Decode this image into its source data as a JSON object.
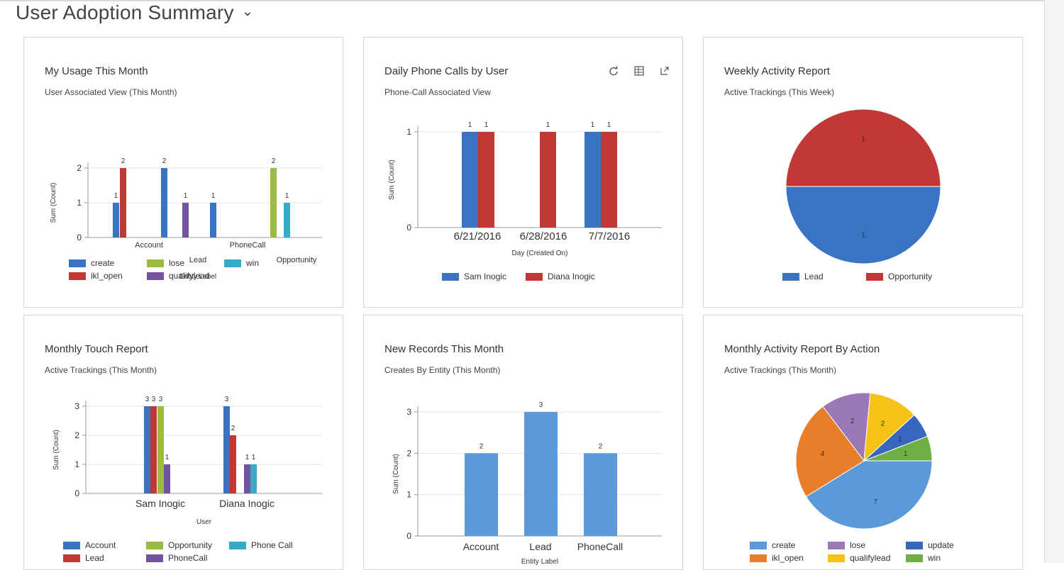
{
  "page": {
    "title": "User Adoption Summary"
  },
  "colors": {
    "blue": "#3a73c2",
    "red": "#c23836",
    "green": "#9bbb43",
    "teal": "#36abc7",
    "purple": "#7452a2",
    "lightblue": "#5b99d8",
    "orange": "#e87e2a",
    "lavender": "#9a79b6",
    "yellow": "#f6c218",
    "darkblue": "#3666bd",
    "midgreen": "#6fae43"
  },
  "cards": [
    {
      "title": "My Usage This Month",
      "subtitle": "User Associated View (This Month)",
      "legend": [
        {
          "label": "create",
          "color": "#3a73c2"
        },
        {
          "label": "lose",
          "color": "#9bbb43"
        },
        {
          "label": "win",
          "color": "#36abc7"
        },
        {
          "label": "ikl_open",
          "color": "#c23836"
        },
        {
          "label": "qualifylead",
          "color": "#7452a2"
        }
      ]
    },
    {
      "title": "Daily Phone Calls by User",
      "subtitle": "Phone-Call Associated View",
      "legend": [
        {
          "label": "Sam Inogic",
          "color": "#3a73c2"
        },
        {
          "label": "Diana Inogic",
          "color": "#c23836"
        }
      ]
    },
    {
      "title": "Weekly Activity Report",
      "subtitle": "Active Trackings (This Week)",
      "legend": [
        {
          "label": "Lead",
          "color": "#3a73c2"
        },
        {
          "label": "Opportunity",
          "color": "#c23836"
        }
      ]
    },
    {
      "title": "Monthly Touch Report",
      "subtitle": "Active Trackings (This Month)",
      "legend": [
        {
          "label": "Account",
          "color": "#3a73c2"
        },
        {
          "label": "Opportunity",
          "color": "#9bbb43"
        },
        {
          "label": "Phone Call",
          "color": "#36abc7"
        },
        {
          "label": "Lead",
          "color": "#c23836"
        },
        {
          "label": "PhoneCall",
          "color": "#7452a2"
        }
      ]
    },
    {
      "title": "New Records This Month",
      "subtitle": "Creates By Entity (This Month)",
      "legend": []
    },
    {
      "title": "Monthly Activity Report By Action",
      "subtitle": "Active Trackings (This Month)",
      "legend": [
        {
          "label": "create",
          "color": "#5b99d8"
        },
        {
          "label": "lose",
          "color": "#9a79b6"
        },
        {
          "label": "update",
          "color": "#3666bd"
        },
        {
          "label": "ikl_open",
          "color": "#e87e2a"
        },
        {
          "label": "qualifylead",
          "color": "#f6c218"
        },
        {
          "label": "win",
          "color": "#6fae43"
        }
      ]
    }
  ],
  "chart_data": [
    {
      "type": "bar",
      "title": "My Usage This Month",
      "xlabel": "Entity Label",
      "ylabel": "Sum (Count)",
      "ylim": [
        0,
        2
      ],
      "yticks": [
        "0",
        "1",
        "2"
      ],
      "categories": [
        "Account",
        "Lead",
        "PhoneCall",
        "Opportunity"
      ],
      "series": [
        {
          "name": "create",
          "color": "#3a73c2",
          "values": [
            1,
            2,
            1,
            null
          ]
        },
        {
          "name": "ikl_open",
          "color": "#c23836",
          "values": [
            2,
            null,
            null,
            null
          ]
        },
        {
          "name": "qualifylead",
          "color": "#7452a2",
          "values": [
            null,
            1,
            null,
            null
          ]
        },
        {
          "name": "lose",
          "color": "#9bbb43",
          "values": [
            null,
            null,
            null,
            2
          ]
        },
        {
          "name": "win",
          "color": "#36abc7",
          "values": [
            null,
            null,
            null,
            1
          ]
        }
      ],
      "grid": true
    },
    {
      "type": "bar",
      "title": "Daily Phone Calls by User",
      "xlabel": "Day (Created On)",
      "ylabel": "Sum (Count)",
      "ylim": [
        0,
        1
      ],
      "yticks": [
        "0",
        "1"
      ],
      "categories": [
        "6/21/2016",
        "6/28/2016",
        "7/7/2016"
      ],
      "series": [
        {
          "name": "Sam Inogic",
          "color": "#3a73c2",
          "values": [
            1,
            null,
            1
          ]
        },
        {
          "name": "Diana Inogic",
          "color": "#c23836",
          "values": [
            1,
            1,
            1
          ]
        }
      ],
      "grid": true
    },
    {
      "type": "pie",
      "title": "Weekly Activity Report",
      "slices": [
        {
          "label": "Lead",
          "value": 1,
          "color": "#3a73c2"
        },
        {
          "label": "Opportunity",
          "value": 1,
          "color": "#c23836"
        }
      ]
    },
    {
      "type": "bar",
      "title": "Monthly Touch Report",
      "xlabel": "User",
      "ylabel": "Sum (Count)",
      "ylim": [
        0,
        3
      ],
      "yticks": [
        "0",
        "1",
        "2",
        "3"
      ],
      "categories": [
        "Sam Inogic",
        "Diana Inogic"
      ],
      "series": [
        {
          "name": "Account",
          "color": "#3a73c2",
          "values": [
            3,
            3
          ]
        },
        {
          "name": "Lead",
          "color": "#c23836",
          "values": [
            3,
            2
          ]
        },
        {
          "name": "Opportunity",
          "color": "#9bbb43",
          "values": [
            3,
            null
          ]
        },
        {
          "name": "PhoneCall",
          "color": "#7452a2",
          "values": [
            1,
            1
          ]
        },
        {
          "name": "Phone Call",
          "color": "#36abc7",
          "values": [
            null,
            1
          ]
        }
      ],
      "grid": true
    },
    {
      "type": "bar",
      "title": "New Records This Month",
      "xlabel": "Entity Label",
      "ylabel": "Sum (Count)",
      "ylim": [
        0,
        3
      ],
      "yticks": [
        "0",
        "1",
        "2",
        "3"
      ],
      "categories": [
        "Account",
        "Lead",
        "PhoneCall"
      ],
      "series": [
        {
          "color": "#5b99d8",
          "values": [
            2,
            3,
            2
          ]
        }
      ],
      "grid": true
    },
    {
      "type": "pie",
      "title": "Monthly Activity Report By Action",
      "slices": [
        {
          "label": "create",
          "value": 7,
          "color": "#5b99d8"
        },
        {
          "label": "ikl_open",
          "value": 4,
          "color": "#e87e2a"
        },
        {
          "label": "lose",
          "value": 2,
          "color": "#9a79b6"
        },
        {
          "label": "qualifylead",
          "value": 2,
          "color": "#f6c218"
        },
        {
          "label": "update",
          "value": 1,
          "color": "#3666bd"
        },
        {
          "label": "win",
          "value": 1,
          "color": "#6fae43"
        }
      ]
    }
  ]
}
